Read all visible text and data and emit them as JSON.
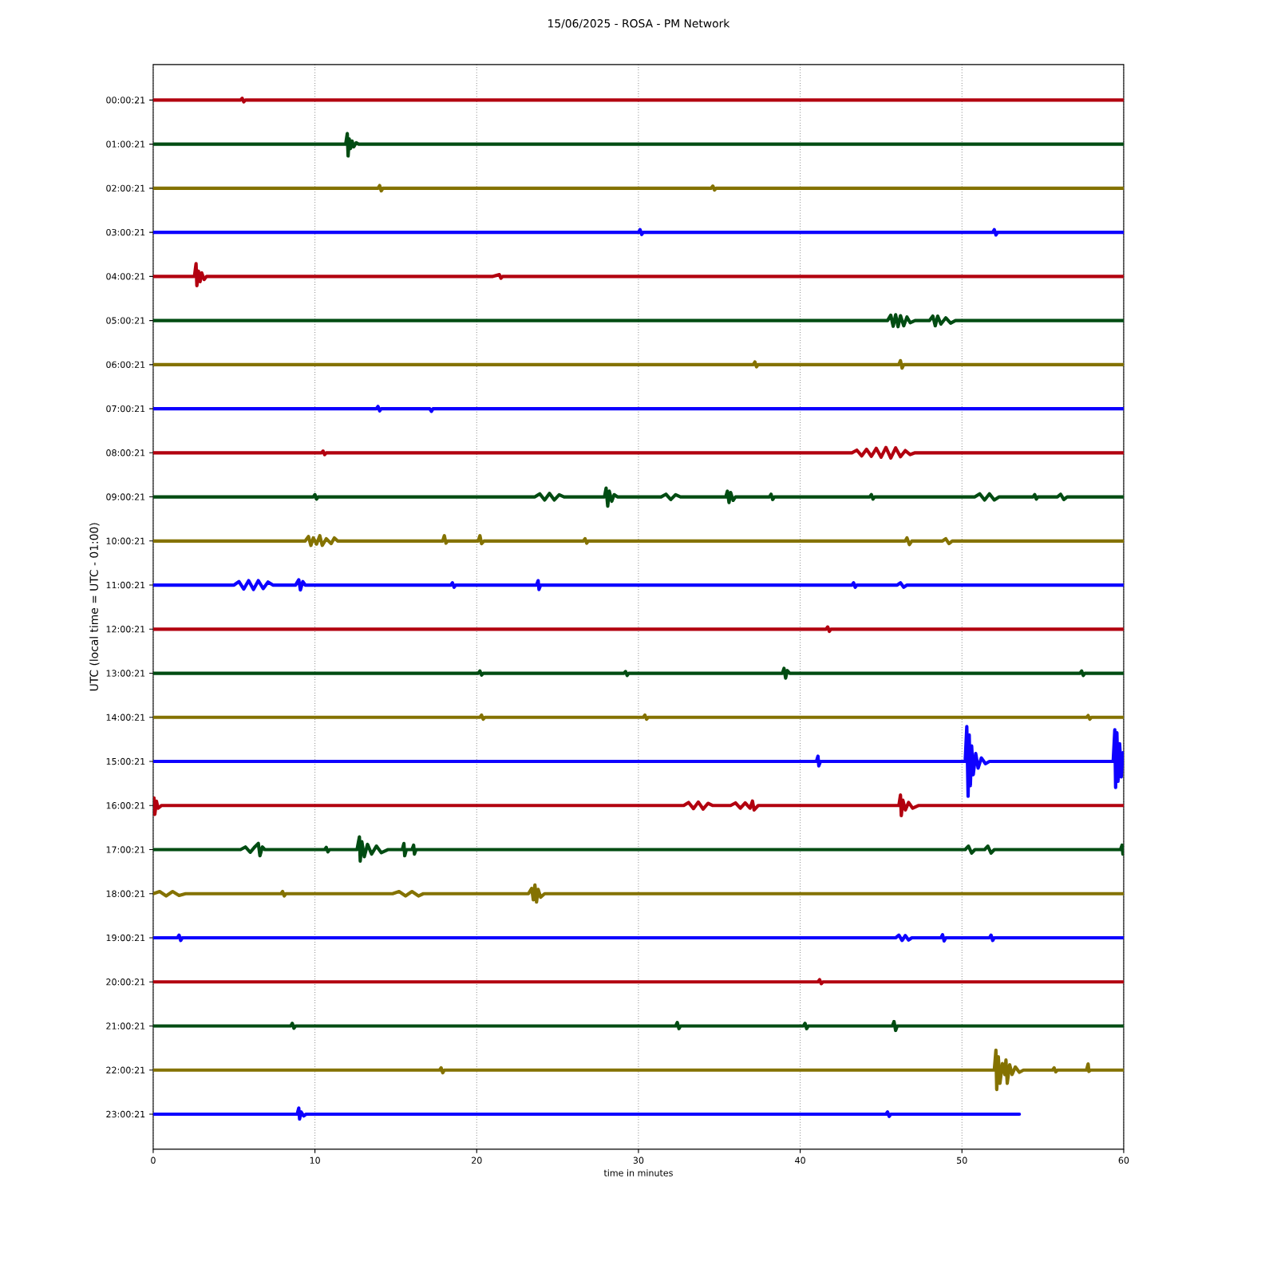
{
  "chart_data": {
    "type": "line",
    "title": "15/06/2025 - ROSA - PM Network",
    "xlabel": "time in minutes",
    "ylabel": "UTC (local time = UTC - 01:00)",
    "xlim": [
      0,
      60
    ],
    "xticks": [
      0,
      10,
      20,
      30,
      40,
      50,
      60
    ],
    "ylim": [
      23.8,
      -0.8
    ],
    "yticks": [
      {
        "value": 0.0058,
        "label": "00:00:21"
      },
      {
        "value": 1.0058,
        "label": "01:00:21"
      },
      {
        "value": 2.0058,
        "label": "02:00:21"
      },
      {
        "value": 3.0058,
        "label": "03:00:21"
      },
      {
        "value": 4.0058,
        "label": "04:00:21"
      },
      {
        "value": 5.0058,
        "label": "05:00:21"
      },
      {
        "value": 6.0058,
        "label": "06:00:21"
      },
      {
        "value": 7.0058,
        "label": "07:00:21"
      },
      {
        "value": 8.0058,
        "label": "08:00:21"
      },
      {
        "value": 9.0058,
        "label": "09:00:21"
      },
      {
        "value": 10.0058,
        "label": "10:00:21"
      },
      {
        "value": 11.0058,
        "label": "11:00:21"
      },
      {
        "value": 12.0058,
        "label": "12:00:21"
      },
      {
        "value": 13.0058,
        "label": "13:00:21"
      },
      {
        "value": 14.0058,
        "label": "14:00:21"
      },
      {
        "value": 15.0058,
        "label": "15:00:21"
      },
      {
        "value": 16.0058,
        "label": "16:00:21"
      },
      {
        "value": 17.0058,
        "label": "17:00:21"
      },
      {
        "value": 18.0058,
        "label": "18:00:21"
      },
      {
        "value": 19.0058,
        "label": "19:00:21"
      },
      {
        "value": 20.0058,
        "label": "20:00:21"
      },
      {
        "value": 21.0058,
        "label": "21:00:21"
      },
      {
        "value": 22.0058,
        "label": "22:00:21"
      },
      {
        "value": 23.0058,
        "label": "23:00:21"
      }
    ],
    "grid": "x",
    "series": [
      {
        "color": "#b2000f",
        "x": [
          0,
          3,
          5.4,
          5.5,
          5.6,
          5.7,
          6,
          9,
          12,
          15,
          18,
          21,
          24,
          27,
          30,
          33,
          36,
          39,
          42,
          45,
          48,
          51,
          54,
          57,
          60
        ],
        "values": [
          0.0058,
          0.0058,
          0.0058,
          -0.0342,
          0.0458,
          0.0058,
          0.0058,
          0.0058,
          0.0058,
          0.0058,
          0.0058,
          0.0058,
          0.0058,
          0.0058,
          0.0058,
          0.0058,
          0.0058,
          0.0058,
          0.0058,
          0.0058,
          0.0058,
          0.0058,
          0.0058,
          0.0058,
          0.0058
        ]
      },
      {
        "color": "#004c12",
        "x": [
          0,
          3,
          6,
          9,
          11.9,
          12,
          12.05,
          12.12,
          12.2,
          12.3,
          12.4,
          12.55,
          12.7,
          15,
          18,
          21,
          24,
          27,
          30,
          33,
          36,
          39,
          42,
          45,
          48,
          51,
          54,
          57,
          60
        ],
        "values": [
          1.0058,
          1.0058,
          1.0058,
          1.0058,
          1.0058,
          0.7658,
          1.2758,
          0.8858,
          1.1058,
          0.9358,
          1.0658,
          0.9758,
          1.0058,
          1.0058,
          1.0058,
          1.0058,
          1.0058,
          1.0058,
          1.0058,
          1.0058,
          1.0058,
          1.0058,
          1.0058,
          1.0058,
          1.0058,
          1.0058,
          1.0058,
          1.0058,
          1.0058
        ]
      },
      {
        "color": "#847200",
        "x": [
          0,
          3,
          6,
          9,
          12,
          13.9,
          14,
          14.1,
          14.2,
          15,
          18,
          21,
          24,
          27,
          30,
          33,
          34.5,
          34.6,
          34.7,
          34.8,
          36,
          39,
          42,
          45,
          48,
          51,
          54,
          57,
          60
        ],
        "values": [
          2.0058,
          2.0058,
          2.0058,
          2.0058,
          2.0058,
          2.0058,
          1.9458,
          2.0658,
          2.0058,
          2.0058,
          2.0058,
          2.0058,
          2.0058,
          2.0058,
          2.0058,
          2.0058,
          2.0058,
          1.9558,
          2.0458,
          2.0058,
          2.0058,
          2.0058,
          2.0058,
          2.0058,
          2.0058,
          2.0058,
          2.0058,
          2.0058,
          2.0058
        ]
      },
      {
        "color": "#0e01ff",
        "x": [
          0,
          3,
          6,
          9,
          12,
          15,
          18,
          21,
          24,
          27,
          30,
          30.1,
          30.2,
          30.3,
          33,
          36,
          39,
          42,
          45,
          48,
          51,
          51.9,
          52,
          52.1,
          52.2,
          54,
          57,
          60
        ],
        "values": [
          3.0058,
          3.0058,
          3.0058,
          3.0058,
          3.0058,
          3.0058,
          3.0058,
          3.0058,
          3.0058,
          3.0058,
          3.0058,
          2.9458,
          3.0558,
          3.0058,
          3.0058,
          3.0058,
          3.0058,
          3.0058,
          3.0058,
          3.0058,
          3.0058,
          3.0058,
          2.9458,
          3.0658,
          3.0058,
          3.0058,
          3.0058,
          3.0058
        ]
      },
      {
        "color": "#b2000f",
        "x": [
          0,
          2.55,
          2.65,
          2.7,
          2.8,
          2.9,
          3,
          3.15,
          3.3,
          6,
          9,
          12,
          15,
          18,
          21,
          21.4,
          21.5,
          21.6,
          24,
          27,
          30,
          33,
          36,
          39,
          42,
          45,
          48,
          51,
          54,
          57,
          60
        ],
        "values": [
          4.0058,
          4.0058,
          3.7158,
          4.2158,
          3.8858,
          4.1258,
          3.9258,
          4.0758,
          4.0058,
          4.0058,
          4.0058,
          4.0058,
          4.0058,
          4.0058,
          4.0058,
          3.9658,
          4.0458,
          4.0058,
          4.0058,
          4.0058,
          4.0058,
          4.0058,
          4.0058,
          4.0058,
          4.0058,
          4.0058,
          4.0058,
          4.0058,
          4.0058,
          4.0058,
          4.0058
        ]
      },
      {
        "color": "#004c12",
        "x": [
          0,
          3,
          6,
          9,
          12,
          15,
          18,
          21,
          24,
          27,
          30,
          33,
          36,
          39,
          42,
          45,
          45.4,
          45.6,
          45.75,
          45.9,
          46.05,
          46.2,
          46.4,
          46.6,
          46.8,
          47.1,
          48,
          48.2,
          48.35,
          48.5,
          48.7,
          49,
          49.3,
          49.6,
          51,
          54,
          57,
          60
        ],
        "values": [
          5.0058,
          5.0058,
          5.0058,
          5.0058,
          5.0058,
          5.0058,
          5.0058,
          5.0058,
          5.0058,
          5.0058,
          5.0058,
          5.0058,
          5.0058,
          5.0058,
          5.0058,
          5.0058,
          5.0058,
          4.8858,
          5.1358,
          4.8758,
          5.1458,
          4.8958,
          5.1258,
          4.9258,
          5.0558,
          5.0058,
          5.0058,
          4.9058,
          5.1258,
          4.9058,
          5.0858,
          4.9458,
          5.0658,
          5.0058,
          5.0058,
          5.0058,
          5.0058,
          5.0058
        ]
      },
      {
        "color": "#847200",
        "x": [
          0,
          3,
          6,
          9,
          12,
          15,
          18,
          21,
          24,
          27,
          30,
          33,
          36,
          37.1,
          37.2,
          37.3,
          37.4,
          39,
          42,
          45,
          46.1,
          46.2,
          46.3,
          46.4,
          48,
          51,
          54,
          57,
          60
        ],
        "values": [
          6.0058,
          6.0058,
          6.0058,
          6.0058,
          6.0058,
          6.0058,
          6.0058,
          6.0058,
          6.0058,
          6.0058,
          6.0058,
          6.0058,
          6.0058,
          6.0058,
          5.9458,
          6.0558,
          6.0058,
          6.0058,
          6.0058,
          6.0058,
          6.0058,
          5.9158,
          6.0858,
          6.0058,
          6.0058,
          6.0058,
          6.0058,
          6.0058,
          6.0058
        ]
      },
      {
        "color": "#0e01ff",
        "x": [
          0,
          3,
          6,
          9,
          12,
          13.8,
          13.9,
          14,
          14.1,
          15,
          17.1,
          17.2,
          17.3,
          18,
          21,
          24,
          27,
          30,
          33,
          36,
          39,
          42,
          45,
          48,
          51,
          54,
          57,
          60
        ],
        "values": [
          7.0058,
          7.0058,
          7.0058,
          7.0058,
          7.0058,
          7.0058,
          6.9558,
          7.0558,
          7.0058,
          7.0058,
          7.0058,
          7.0658,
          7.0058,
          7.0058,
          7.0058,
          7.0058,
          7.0058,
          7.0058,
          7.0058,
          7.0058,
          7.0058,
          7.0058,
          7.0058,
          7.0058,
          7.0058,
          7.0058,
          7.0058,
          7.0058
        ]
      },
      {
        "color": "#b2000f",
        "x": [
          0,
          3,
          6,
          9,
          10.4,
          10.5,
          10.6,
          10.7,
          12,
          15,
          18,
          21,
          24,
          27,
          30,
          33,
          36,
          39,
          42,
          43.2,
          43.5,
          43.8,
          44.1,
          44.4,
          44.7,
          45,
          45.3,
          45.6,
          45.9,
          46.2,
          46.5,
          46.8,
          47.1,
          48,
          51,
          54,
          57,
          60
        ],
        "values": [
          8.0058,
          8.0058,
          8.0058,
          8.0058,
          8.0058,
          7.9658,
          8.0458,
          8.0058,
          8.0058,
          8.0058,
          8.0058,
          8.0058,
          8.0058,
          8.0058,
          8.0058,
          8.0058,
          8.0058,
          8.0058,
          8.0058,
          8.0058,
          7.9458,
          8.0758,
          7.9258,
          8.0858,
          7.9058,
          8.1058,
          7.8858,
          8.1258,
          7.8958,
          8.0958,
          7.9558,
          8.0458,
          8.0058,
          8.0058,
          8.0058,
          8.0058,
          8.0058,
          8.0058
        ]
      },
      {
        "color": "#004c12",
        "x": [
          0,
          3,
          6,
          9,
          9.9,
          10,
          10.1,
          10.2,
          12,
          15,
          18,
          21,
          23.6,
          23.9,
          24.2,
          24.5,
          24.8,
          25.1,
          25.4,
          27,
          27.9,
          28,
          28.1,
          28.2,
          28.35,
          28.5,
          28.7,
          30,
          31.4,
          31.7,
          32,
          32.3,
          32.6,
          33,
          35.4,
          35.5,
          35.6,
          35.7,
          35.85,
          36,
          38.1,
          38.2,
          38.3,
          38.4,
          39,
          42,
          44.3,
          44.4,
          44.5,
          44.6,
          45,
          48,
          50.8,
          51.1,
          51.4,
          51.7,
          52,
          52.3,
          54,
          54.4,
          54.5,
          54.6,
          54.7,
          55.9,
          56.1,
          56.3,
          56.5,
          57,
          60
        ],
        "values": [
          9.0058,
          9.0058,
          9.0058,
          9.0058,
          9.0058,
          8.9558,
          9.0558,
          9.0058,
          9.0058,
          9.0058,
          9.0058,
          9.0058,
          9.0058,
          8.9358,
          9.0758,
          8.9258,
          9.0758,
          8.9558,
          9.0058,
          9.0058,
          9.0058,
          8.8058,
          9.2158,
          8.8758,
          9.1058,
          8.9558,
          9.0058,
          9.0058,
          9.0058,
          8.9458,
          9.0658,
          8.9558,
          9.0058,
          9.0058,
          9.0058,
          8.8758,
          9.1358,
          8.9058,
          9.0858,
          9.0058,
          9.0058,
          8.9458,
          9.0658,
          9.0058,
          9.0058,
          9.0058,
          9.0058,
          8.9558,
          9.0558,
          9.0058,
          9.0058,
          9.0058,
          9.0058,
          8.9358,
          9.0758,
          8.9358,
          9.0758,
          9.0058,
          9.0058,
          9.0058,
          8.9558,
          9.0558,
          9.0058,
          9.0058,
          8.9458,
          9.0658,
          9.0058,
          9.0058,
          9.0058
        ]
      },
      {
        "color": "#847200",
        "x": [
          0,
          3,
          6,
          9,
          9.4,
          9.6,
          9.75,
          9.9,
          10.1,
          10.3,
          10.45,
          10.7,
          11,
          11.2,
          11.4,
          12,
          15,
          17.9,
          18,
          18.1,
          18.2,
          20.1,
          20.2,
          20.3,
          20.45,
          21,
          24,
          26.6,
          26.7,
          26.8,
          26.9,
          27,
          30,
          33,
          36,
          39,
          42,
          45,
          46.5,
          46.6,
          46.75,
          46.9,
          48,
          48.8,
          49,
          49.2,
          49.4,
          51,
          54,
          57,
          60
        ],
        "values": [
          10.0058,
          10.0058,
          10.0058,
          10.0058,
          10.0058,
          9.9058,
          10.1058,
          9.9358,
          10.0758,
          9.8858,
          10.1058,
          9.9558,
          10.0658,
          9.9358,
          10.0058,
          10.0058,
          10.0058,
          10.0058,
          9.8858,
          10.0558,
          10.0058,
          10.0058,
          9.8858,
          10.0658,
          10.0058,
          10.0058,
          10.0058,
          10.0058,
          9.9558,
          10.0558,
          10.0058,
          10.0058,
          10.0058,
          10.0058,
          10.0058,
          10.0058,
          10.0058,
          10.0058,
          10.0058,
          9.9358,
          10.0858,
          10.0058,
          10.0058,
          10.0058,
          9.9558,
          10.0658,
          10.0058,
          10.0058,
          10.0058,
          10.0058,
          10.0058
        ]
      },
      {
        "color": "#0e01ff",
        "x": [
          0,
          3,
          5,
          5.3,
          5.6,
          5.9,
          6.2,
          6.5,
          6.8,
          7.1,
          7.4,
          8.8,
          9,
          9.1,
          9.25,
          9.4,
          12,
          15,
          18,
          18.4,
          18.5,
          18.6,
          18.7,
          21,
          23.7,
          23.8,
          23.85,
          23.95,
          24,
          27,
          30,
          33,
          36,
          39,
          42,
          43.2,
          43.3,
          43.4,
          43.5,
          45,
          46,
          46.2,
          46.4,
          46.6,
          48,
          51,
          54,
          57,
          60
        ],
        "values": [
          11.0058,
          11.0058,
          11.0058,
          10.9258,
          11.0958,
          10.9058,
          11.1058,
          10.9058,
          11.0858,
          10.9358,
          11.0058,
          11.0058,
          10.8858,
          11.1158,
          10.9258,
          11.0058,
          11.0058,
          11.0058,
          11.0058,
          11.0058,
          10.9558,
          11.0558,
          11.0058,
          11.0058,
          11.0058,
          10.9058,
          11.1058,
          11.0058,
          11.0058,
          11.0058,
          11.0058,
          11.0058,
          11.0058,
          11.0058,
          11.0058,
          11.0058,
          10.9558,
          11.0558,
          11.0058,
          11.0058,
          11.0058,
          10.9558,
          11.0558,
          11.0058,
          11.0058,
          11.0058,
          11.0058,
          11.0058,
          11.0058
        ]
      },
      {
        "color": "#b2000f",
        "x": [
          0,
          3,
          6,
          9,
          12,
          15,
          18,
          21,
          24,
          27,
          30,
          33,
          36,
          39,
          41.6,
          41.7,
          41.8,
          41.9,
          42,
          45,
          48,
          51,
          54,
          57,
          60
        ],
        "values": [
          12.0058,
          12.0058,
          12.0058,
          12.0058,
          12.0058,
          12.0058,
          12.0058,
          12.0058,
          12.0058,
          12.0058,
          12.0058,
          12.0058,
          12.0058,
          12.0058,
          12.0058,
          11.9558,
          12.0558,
          12.0058,
          12.0058,
          12.0058,
          12.0058,
          12.0058,
          12.0058,
          12.0058,
          12.0058
        ]
      },
      {
        "color": "#004c12",
        "x": [
          0,
          3,
          6,
          9,
          12,
          15,
          18,
          20.1,
          20.2,
          20.3,
          20.4,
          21,
          24,
          27,
          29.1,
          29.2,
          29.3,
          29.4,
          30,
          33,
          36,
          38.9,
          39,
          39.1,
          39.2,
          39.35,
          42,
          45,
          48,
          51,
          54,
          57,
          57.3,
          57.4,
          57.5,
          57.6,
          60
        ],
        "values": [
          13.0058,
          13.0058,
          13.0058,
          13.0058,
          13.0058,
          13.0058,
          13.0058,
          13.0058,
          12.9558,
          13.0458,
          13.0058,
          13.0058,
          13.0058,
          13.0058,
          13.0058,
          12.9658,
          13.0558,
          13.0058,
          13.0058,
          13.0058,
          13.0058,
          13.0058,
          12.8958,
          13.1158,
          12.9458,
          13.0058,
          13.0058,
          13.0058,
          13.0058,
          13.0058,
          13.0058,
          13.0058,
          13.0058,
          12.9558,
          13.0558,
          13.0058,
          13.0058
        ]
      },
      {
        "color": "#847200",
        "x": [
          0,
          3,
          6,
          9,
          12,
          15,
          18,
          20.2,
          20.3,
          20.4,
          20.5,
          21,
          24,
          27,
          30,
          30.3,
          30.4,
          30.5,
          30.6,
          33,
          36,
          39,
          42,
          45,
          48,
          51,
          54,
          57,
          57.7,
          57.8,
          57.9,
          58,
          60
        ],
        "values": [
          14.0058,
          14.0058,
          14.0058,
          14.0058,
          14.0058,
          14.0058,
          14.0058,
          14.0058,
          13.9558,
          14.0458,
          14.0058,
          14.0058,
          14.0058,
          14.0058,
          14.0058,
          14.0058,
          13.9558,
          14.0458,
          14.0058,
          14.0058,
          14.0058,
          14.0058,
          14.0058,
          14.0058,
          14.0058,
          14.0058,
          14.0058,
          14.0058,
          14.0058,
          13.9658,
          14.0458,
          14.0058,
          14.0058
        ]
      },
      {
        "color": "#0e01ff",
        "x": [
          0,
          3,
          6,
          9,
          12,
          15,
          18,
          21,
          24,
          27,
          30,
          33,
          36,
          39,
          41,
          41.1,
          41.15,
          41.25,
          42,
          45,
          48,
          50.2,
          50.3,
          50.38,
          50.45,
          50.52,
          50.6,
          50.7,
          50.85,
          51,
          51.2,
          51.45,
          51.7,
          54,
          57,
          59.35,
          59.45,
          59.5,
          59.58,
          59.65,
          59.75,
          59.85,
          59.95,
          60
        ],
        "values": [
          15.0058,
          15.0058,
          15.0058,
          15.0058,
          15.0058,
          15.0058,
          15.0058,
          15.0058,
          15.0058,
          15.0058,
          15.0058,
          15.0058,
          15.0058,
          15.0058,
          15.0058,
          14.8858,
          15.1058,
          15.0058,
          15.0058,
          15.0058,
          15.0058,
          15.0058,
          14.2158,
          15.7958,
          14.4058,
          15.5558,
          14.6558,
          15.3058,
          14.8258,
          15.1558,
          14.9258,
          15.0558,
          15.0058,
          15.0058,
          15.0058,
          15.0058,
          14.2858,
          15.5958,
          14.3558,
          15.4558,
          14.6058,
          15.3558,
          14.8058,
          15.0058
        ]
      },
      {
        "color": "#b2000f",
        "x": [
          0,
          0.05,
          0.1,
          0.2,
          0.3,
          0.5,
          3,
          6,
          9,
          12,
          15,
          18,
          21,
          24,
          27,
          30,
          32.8,
          33.1,
          33.4,
          33.7,
          34,
          34.3,
          34.6,
          35.7,
          36,
          36.3,
          36.6,
          36.9,
          37.05,
          37.15,
          37.4,
          39,
          42,
          45,
          46.1,
          46.2,
          46.25,
          46.35,
          46.5,
          46.7,
          46.95,
          47.3,
          48,
          51,
          54,
          57,
          60
        ],
        "values": [
          16.0058,
          15.8358,
          16.2058,
          15.9058,
          16.0658,
          16.0058,
          16.0058,
          16.0058,
          16.0058,
          16.0058,
          16.0058,
          16.0058,
          16.0058,
          16.0058,
          16.0058,
          16.0058,
          16.0058,
          15.9358,
          16.0758,
          15.9258,
          16.0858,
          15.9558,
          16.0058,
          16.0058,
          15.9458,
          16.0658,
          15.9458,
          16.0658,
          15.9058,
          16.1058,
          16.0058,
          16.0058,
          16.0058,
          16.0058,
          16.0058,
          15.7658,
          16.2358,
          15.8858,
          16.1058,
          15.9358,
          16.0658,
          16.0058,
          16.0058,
          16.0058,
          16.0058,
          16.0058,
          16.0058
        ]
      },
      {
        "color": "#004c12",
        "x": [
          0,
          3,
          5.4,
          5.7,
          6,
          6.3,
          6.5,
          6.6,
          6.75,
          6.9,
          9,
          10.6,
          10.7,
          10.8,
          10.9,
          12,
          12.6,
          12.75,
          12.8,
          12.9,
          13.05,
          13.25,
          13.5,
          13.8,
          14.1,
          14.5,
          15,
          15.4,
          15.5,
          15.55,
          15.65,
          16,
          16.1,
          16.15,
          16.25,
          18,
          21,
          24,
          27,
          30,
          33,
          36,
          39,
          42,
          45,
          48,
          50.2,
          50.4,
          50.6,
          50.8,
          51.4,
          51.6,
          51.8,
          52,
          54,
          57,
          59.8,
          59.9,
          59.95,
          60
        ],
        "values": [
          17.0058,
          17.0058,
          17.0058,
          16.9458,
          17.0658,
          16.9358,
          16.8658,
          17.1458,
          16.9458,
          17.0058,
          17.0058,
          17.0058,
          16.9558,
          17.0558,
          17.0058,
          17.0058,
          17.0058,
          16.7158,
          17.2658,
          16.8258,
          17.1658,
          16.8858,
          17.1058,
          16.9258,
          17.0758,
          17.0058,
          17.0058,
          17.0058,
          16.8658,
          17.1458,
          17.0058,
          17.0058,
          16.9058,
          17.1058,
          17.0058,
          17.0058,
          17.0058,
          17.0058,
          17.0058,
          17.0058,
          17.0058,
          17.0058,
          17.0058,
          17.0058,
          17.0058,
          17.0058,
          17.0058,
          16.9258,
          17.0858,
          17.0058,
          17.0058,
          16.9258,
          17.0858,
          17.0058,
          17.0058,
          17.0058,
          17.0058,
          16.9058,
          17.1058,
          17.0058
        ]
      },
      {
        "color": "#847200",
        "x": [
          0,
          0.4,
          0.8,
          1.2,
          1.6,
          2,
          3,
          6,
          7.9,
          8,
          8.1,
          8.2,
          9,
          12,
          14.8,
          15.2,
          15.6,
          16,
          16.4,
          16.7,
          18,
          21,
          23.2,
          23.4,
          23.5,
          23.6,
          23.7,
          23.8,
          23.95,
          24.2,
          27,
          30,
          33,
          36,
          39,
          42,
          45,
          48,
          51,
          54,
          57,
          60
        ],
        "values": [
          18.0058,
          17.9558,
          18.0558,
          17.9558,
          18.0458,
          18.0058,
          18.0058,
          18.0058,
          18.0058,
          17.9558,
          18.0558,
          18.0058,
          18.0058,
          18.0058,
          18.0058,
          17.9558,
          18.0558,
          17.9558,
          18.0558,
          18.0058,
          18.0058,
          18.0058,
          18.0058,
          17.8858,
          18.1458,
          17.8058,
          18.1958,
          17.9058,
          18.0858,
          18.0058,
          18.0058,
          18.0058,
          18.0058,
          18.0058,
          18.0058,
          18.0058,
          18.0058,
          18.0058,
          18.0058,
          18.0058,
          18.0058,
          18.0058
        ]
      },
      {
        "color": "#0e01ff",
        "x": [
          0,
          1.5,
          1.6,
          1.7,
          1.8,
          3,
          6,
          9,
          12,
          15,
          18,
          21,
          24,
          27,
          30,
          33,
          36,
          39,
          42,
          45,
          45.9,
          46.1,
          46.3,
          46.5,
          46.7,
          46.9,
          48,
          48.7,
          48.8,
          48.9,
          49,
          51,
          51.7,
          51.8,
          51.9,
          52,
          54,
          57,
          60
        ],
        "values": [
          19.0058,
          19.0058,
          18.9458,
          19.0658,
          19.0058,
          19.0058,
          19.0058,
          19.0058,
          19.0058,
          19.0058,
          19.0058,
          19.0058,
          19.0058,
          19.0058,
          19.0058,
          19.0058,
          19.0058,
          19.0058,
          19.0058,
          19.0058,
          19.0058,
          18.9458,
          19.0658,
          18.9558,
          19.0558,
          19.0058,
          19.0058,
          19.0058,
          18.9358,
          19.0758,
          19.0058,
          19.0058,
          19.0058,
          18.9458,
          19.0658,
          19.0058,
          19.0058,
          19.0058,
          19.0058
        ]
      },
      {
        "color": "#b2000f",
        "x": [
          0,
          3,
          6,
          9,
          12,
          15,
          18,
          21,
          24,
          27,
          30,
          33,
          36,
          39,
          41.1,
          41.2,
          41.3,
          41.4,
          42,
          45,
          48,
          51,
          54,
          57,
          60
        ],
        "values": [
          20.0058,
          20.0058,
          20.0058,
          20.0058,
          20.0058,
          20.0058,
          20.0058,
          20.0058,
          20.0058,
          20.0058,
          20.0058,
          20.0058,
          20.0058,
          20.0058,
          20.0058,
          19.9558,
          20.0458,
          20.0058,
          20.0058,
          20.0058,
          20.0058,
          20.0058,
          20.0058,
          20.0058,
          20.0058
        ]
      },
      {
        "color": "#004c12",
        "x": [
          0,
          3,
          6,
          8.5,
          8.6,
          8.7,
          8.8,
          9,
          12,
          15,
          18,
          21,
          24,
          27,
          30,
          32.3,
          32.4,
          32.5,
          32.6,
          33,
          36,
          39,
          40.2,
          40.3,
          40.4,
          40.5,
          42,
          45,
          45.7,
          45.8,
          45.9,
          46,
          48,
          51,
          54,
          57,
          60
        ],
        "values": [
          21.0058,
          21.0058,
          21.0058,
          21.0058,
          20.9458,
          21.0558,
          21.0058,
          21.0058,
          21.0058,
          21.0058,
          21.0058,
          21.0058,
          21.0058,
          21.0058,
          21.0058,
          21.0058,
          20.9258,
          21.0658,
          21.0058,
          21.0058,
          21.0058,
          21.0058,
          21.0058,
          20.9458,
          21.0658,
          21.0058,
          21.0058,
          21.0058,
          21.0058,
          20.9058,
          21.1058,
          21.0058,
          21.0058,
          21.0058,
          21.0058,
          21.0058,
          21.0058
        ]
      },
      {
        "color": "#847200",
        "x": [
          0,
          3,
          6,
          9,
          12,
          15,
          17.7,
          17.8,
          17.9,
          18,
          21,
          24,
          27,
          30,
          33,
          36,
          39,
          42,
          45,
          48,
          51,
          52,
          52.1,
          52.15,
          52.25,
          52.35,
          52.5,
          52.65,
          52.72,
          52.8,
          52.95,
          53.1,
          53.3,
          53.55,
          53.8,
          54,
          55.6,
          55.7,
          55.8,
          55.9,
          57,
          57.7,
          57.8,
          57.85,
          57.95,
          60
        ],
        "values": [
          22.0058,
          22.0058,
          22.0058,
          22.0058,
          22.0058,
          22.0058,
          22.0058,
          21.9558,
          22.0658,
          22.0058,
          22.0058,
          22.0058,
          22.0058,
          22.0058,
          22.0058,
          22.0058,
          22.0058,
          22.0058,
          22.0058,
          22.0058,
          22.0058,
          22.0058,
          21.5558,
          22.4458,
          21.7058,
          22.3058,
          21.8558,
          22.1058,
          21.7758,
          22.3058,
          21.8858,
          22.1058,
          21.9358,
          22.0558,
          22.0058,
          22.0058,
          22.0058,
          21.9558,
          22.0458,
          22.0058,
          22.0058,
          22.0058,
          21.8658,
          22.0358,
          22.0058,
          22.0058
        ]
      },
      {
        "color": "#0e01ff",
        "x": [
          0,
          3,
          6,
          8.9,
          9,
          9.05,
          9.15,
          9.3,
          9.45,
          12,
          15,
          18,
          21,
          24,
          27,
          30,
          33,
          36,
          39,
          42,
          45,
          45.3,
          45.4,
          45.5,
          45.6,
          48,
          51,
          53.55
        ],
        "values": [
          23.0058,
          23.0058,
          23.0058,
          23.0058,
          22.8658,
          23.1158,
          22.9558,
          23.0458,
          23.0058,
          23.0058,
          23.0058,
          23.0058,
          23.0058,
          23.0058,
          23.0058,
          23.0058,
          23.0058,
          23.0058,
          23.0058,
          23.0058,
          23.0058,
          23.0058,
          22.9558,
          23.0558,
          23.0058,
          23.0058,
          23.0058,
          23.0058
        ]
      }
    ]
  }
}
